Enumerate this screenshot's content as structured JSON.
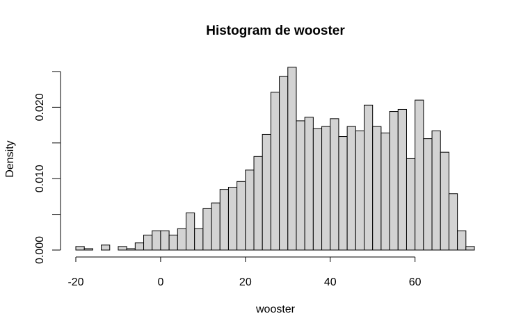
{
  "chart_data": {
    "type": "bar",
    "subtype": "histogram",
    "title": "Histogram de wooster",
    "xlabel": "wooster",
    "ylabel": "Density",
    "xlim": [
      -20,
      74
    ],
    "ylim": [
      0,
      0.025
    ],
    "x_ticks": [
      -20,
      0,
      20,
      40,
      60
    ],
    "x_tick_labels": [
      "-20",
      "0",
      "20",
      "40",
      "60"
    ],
    "y_ticks": [
      0,
      0.005,
      0.01,
      0.015,
      0.02,
      0.025
    ],
    "y_tick_labels": [
      "0.000",
      "",
      "0.010",
      "",
      "0.020",
      ""
    ],
    "grid": false,
    "bar_fill": "#d3d3d3",
    "bar_stroke": "#000000",
    "bins": [
      {
        "x0": -20,
        "x1": -18,
        "density": 0.0005
      },
      {
        "x0": -18,
        "x1": -16,
        "density": 0.0002
      },
      {
        "x0": -16,
        "x1": -14,
        "density": 0.0
      },
      {
        "x0": -14,
        "x1": -12,
        "density": 0.0007
      },
      {
        "x0": -12,
        "x1": -10,
        "density": 0.0
      },
      {
        "x0": -10,
        "x1": -8,
        "density": 0.0005
      },
      {
        "x0": -8,
        "x1": -6,
        "density": 0.0002
      },
      {
        "x0": -6,
        "x1": -4,
        "density": 0.001
      },
      {
        "x0": -4,
        "x1": -2,
        "density": 0.0021
      },
      {
        "x0": -2,
        "x1": 0,
        "density": 0.0027
      },
      {
        "x0": 0,
        "x1": 2,
        "density": 0.0027
      },
      {
        "x0": 2,
        "x1": 4,
        "density": 0.0021
      },
      {
        "x0": 4,
        "x1": 6,
        "density": 0.003
      },
      {
        "x0": 6,
        "x1": 8,
        "density": 0.0052
      },
      {
        "x0": 8,
        "x1": 10,
        "density": 0.003
      },
      {
        "x0": 10,
        "x1": 12,
        "density": 0.0058
      },
      {
        "x0": 12,
        "x1": 14,
        "density": 0.0066
      },
      {
        "x0": 14,
        "x1": 16,
        "density": 0.0085
      },
      {
        "x0": 16,
        "x1": 18,
        "density": 0.0088
      },
      {
        "x0": 18,
        "x1": 20,
        "density": 0.0096
      },
      {
        "x0": 20,
        "x1": 22,
        "density": 0.0112
      },
      {
        "x0": 22,
        "x1": 24,
        "density": 0.0131
      },
      {
        "x0": 24,
        "x1": 26,
        "density": 0.0162
      },
      {
        "x0": 26,
        "x1": 28,
        "density": 0.0221
      },
      {
        "x0": 28,
        "x1": 30,
        "density": 0.0243
      },
      {
        "x0": 30,
        "x1": 32,
        "density": 0.0256
      },
      {
        "x0": 32,
        "x1": 34,
        "density": 0.0181
      },
      {
        "x0": 34,
        "x1": 36,
        "density": 0.0186
      },
      {
        "x0": 36,
        "x1": 38,
        "density": 0.017
      },
      {
        "x0": 38,
        "x1": 40,
        "density": 0.0173
      },
      {
        "x0": 40,
        "x1": 42,
        "density": 0.0184
      },
      {
        "x0": 42,
        "x1": 44,
        "density": 0.0159
      },
      {
        "x0": 44,
        "x1": 46,
        "density": 0.0173
      },
      {
        "x0": 46,
        "x1": 48,
        "density": 0.0167
      },
      {
        "x0": 48,
        "x1": 50,
        "density": 0.0203
      },
      {
        "x0": 50,
        "x1": 52,
        "density": 0.0173
      },
      {
        "x0": 52,
        "x1": 54,
        "density": 0.0164
      },
      {
        "x0": 54,
        "x1": 56,
        "density": 0.0194
      },
      {
        "x0": 56,
        "x1": 58,
        "density": 0.0197
      },
      {
        "x0": 58,
        "x1": 60,
        "density": 0.0128
      },
      {
        "x0": 60,
        "x1": 62,
        "density": 0.021
      },
      {
        "x0": 62,
        "x1": 64,
        "density": 0.0156
      },
      {
        "x0": 64,
        "x1": 66,
        "density": 0.0167
      },
      {
        "x0": 66,
        "x1": 68,
        "density": 0.0137
      },
      {
        "x0": 68,
        "x1": 70,
        "density": 0.0079
      },
      {
        "x0": 70,
        "x1": 72,
        "density": 0.0027
      },
      {
        "x0": 72,
        "x1": 74,
        "density": 0.0005
      }
    ]
  }
}
